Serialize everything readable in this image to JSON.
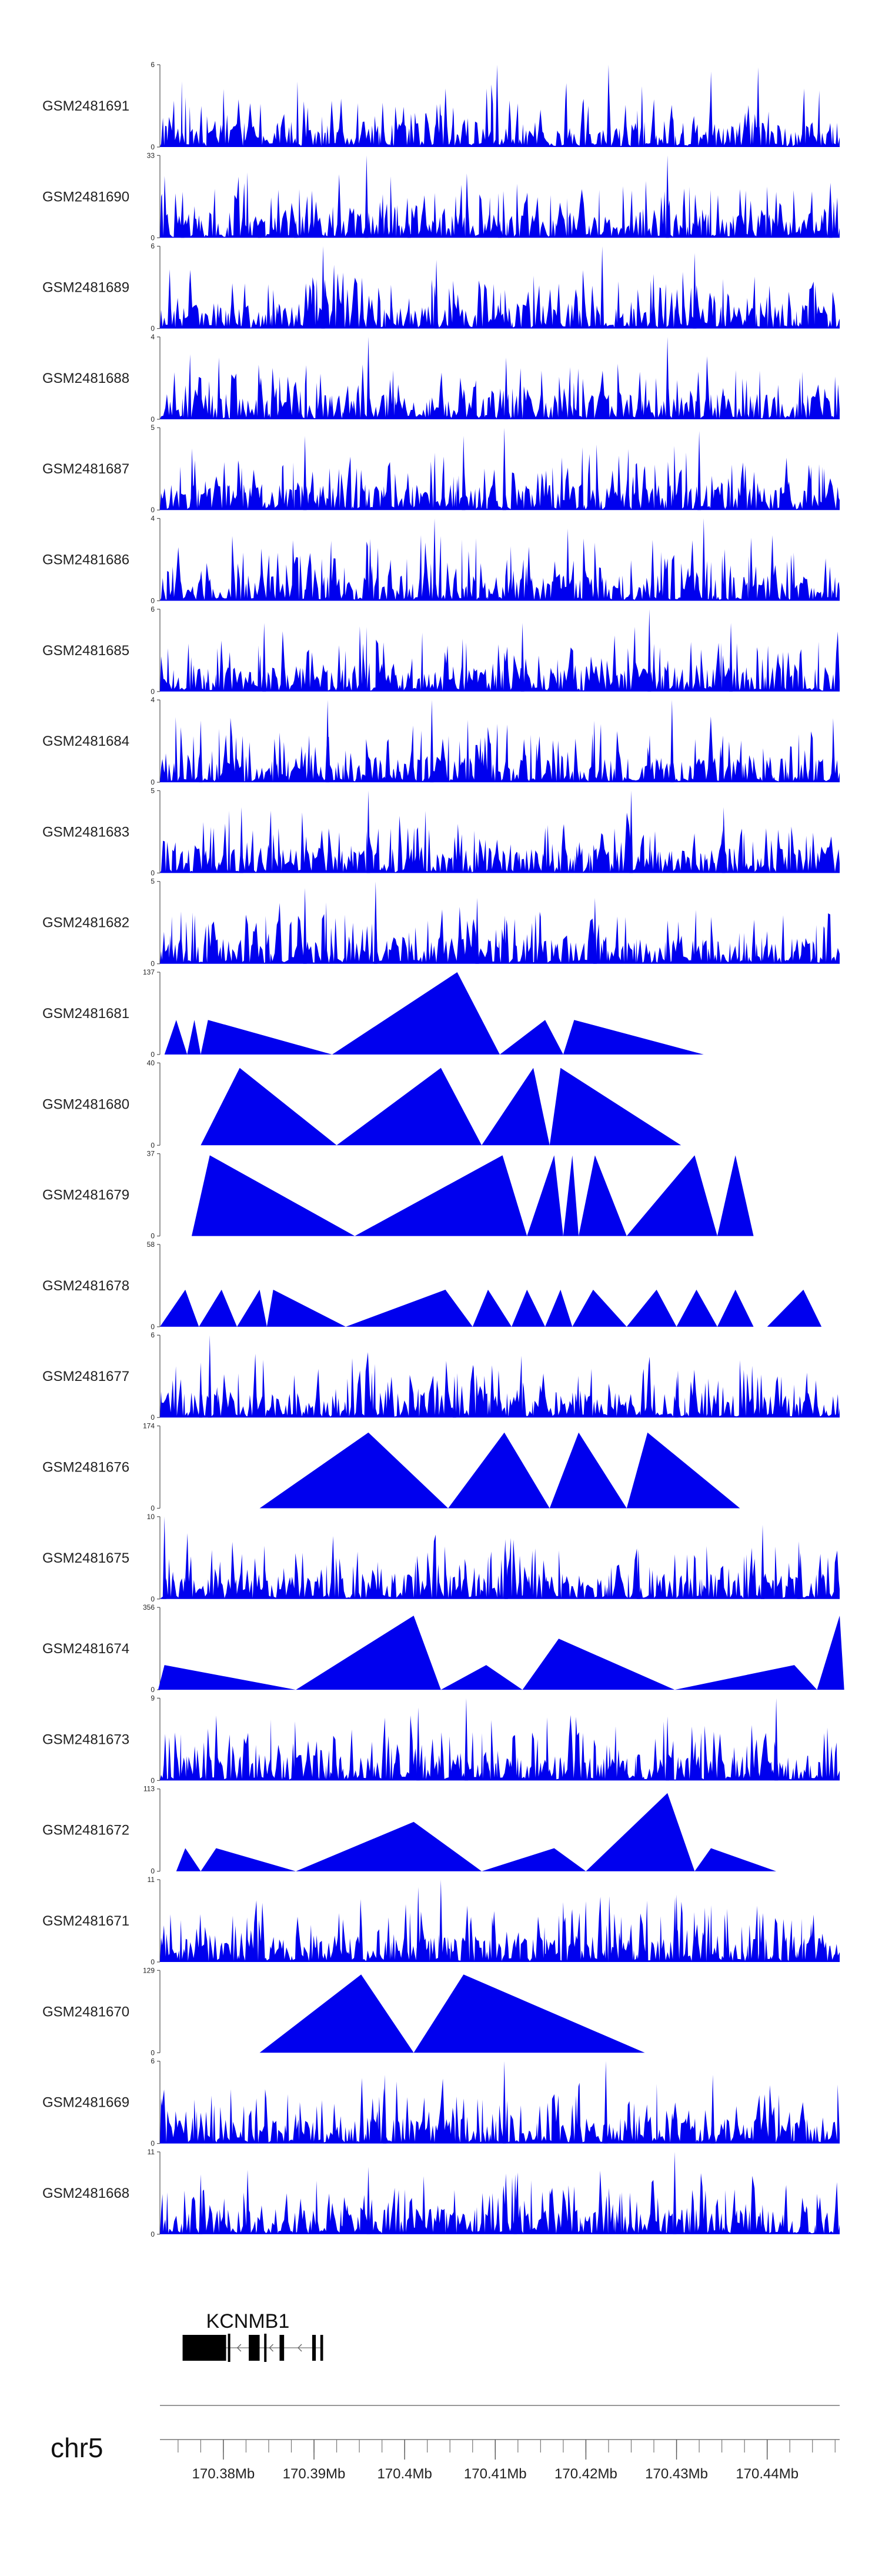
{
  "chart_data": {
    "type": "area",
    "x_axis": {
      "chromosome": "chr5",
      "unit": "Mb",
      "range": [
        170.373,
        170.448
      ],
      "major_ticks": [
        170.38,
        170.39,
        170.4,
        170.41,
        170.42,
        170.43,
        170.44
      ],
      "tick_labels": [
        "170.38Mb",
        "170.39Mb",
        "170.4Mb",
        "170.41Mb",
        "170.42Mb",
        "170.43Mb",
        "170.44Mb"
      ],
      "minor_tick_step": 0.0025
    },
    "gene": {
      "name": "KCNMB1",
      "strand": "-",
      "start": 170.3755,
      "end": 170.391,
      "exons": [
        [
          170.3755,
          170.3803
        ],
        [
          170.3828,
          170.384
        ],
        [
          170.3862,
          170.3867
        ],
        [
          170.3898,
          170.3902
        ],
        [
          170.3907,
          170.391
        ]
      ]
    },
    "fill_color": "#0000ee",
    "tracks": [
      {
        "label": "GSM2481691",
        "ymax": "6",
        "style": "dense",
        "peaks": [
          {
            "x": 170.4102,
            "y": 6
          },
          {
            "x": 170.4225,
            "y": 6
          },
          {
            "x": 170.4338,
            "y": 5.5
          },
          {
            "x": 170.439,
            "y": 5.8
          }
        ]
      },
      {
        "label": "GSM2481690",
        "ymax": "33",
        "style": "sparse",
        "peaks": [
          {
            "x": 170.3755,
            "y": 6
          },
          {
            "x": 170.384,
            "y": 7
          },
          {
            "x": 170.388,
            "y": 7
          },
          {
            "x": 170.3958,
            "y": 33
          },
          {
            "x": 170.4005,
            "y": 6
          },
          {
            "x": 170.4105,
            "y": 7
          },
          {
            "x": 170.429,
            "y": 33
          },
          {
            "x": 170.447,
            "y": 6
          }
        ]
      },
      {
        "label": "GSM2481689",
        "ymax": "6",
        "style": "dense",
        "peaks": [
          {
            "x": 170.391,
            "y": 6
          },
          {
            "x": 170.4035,
            "y": 5
          },
          {
            "x": 170.4218,
            "y": 6
          },
          {
            "x": 170.432,
            "y": 5.5
          }
        ]
      },
      {
        "label": "GSM2481688",
        "ymax": "4",
        "style": "dense",
        "peaks": [
          {
            "x": 170.3795,
            "y": 3
          },
          {
            "x": 170.396,
            "y": 4
          },
          {
            "x": 170.4112,
            "y": 3
          },
          {
            "x": 170.429,
            "y": 4
          }
        ]
      },
      {
        "label": "GSM2481687",
        "ymax": "5",
        "style": "dense",
        "peaks": [
          {
            "x": 170.389,
            "y": 4.5
          },
          {
            "x": 170.4065,
            "y": 4.5
          },
          {
            "x": 170.411,
            "y": 5
          },
          {
            "x": 170.4325,
            "y": 4.8
          }
        ]
      },
      {
        "label": "GSM2481686",
        "ymax": "4",
        "style": "dense",
        "peaks": [
          {
            "x": 170.3962,
            "y": 3
          },
          {
            "x": 170.4033,
            "y": 4
          },
          {
            "x": 170.418,
            "y": 3.5
          },
          {
            "x": 170.433,
            "y": 4
          }
        ]
      },
      {
        "label": "GSM2481685",
        "ymax": "6",
        "style": "dense",
        "peaks": [
          {
            "x": 170.3845,
            "y": 5
          },
          {
            "x": 170.413,
            "y": 5
          },
          {
            "x": 170.427,
            "y": 6
          },
          {
            "x": 170.436,
            "y": 5
          }
        ]
      },
      {
        "label": "GSM2481684",
        "ymax": "4",
        "style": "dense",
        "peaks": [
          {
            "x": 170.3775,
            "y": 3
          },
          {
            "x": 170.3915,
            "y": 4
          },
          {
            "x": 170.403,
            "y": 4
          },
          {
            "x": 170.4295,
            "y": 4
          }
        ]
      },
      {
        "label": "GSM2481683",
        "ymax": "5",
        "style": "dense",
        "peaks": [
          {
            "x": 170.382,
            "y": 4
          },
          {
            "x": 170.396,
            "y": 5
          },
          {
            "x": 170.425,
            "y": 5
          },
          {
            "x": 170.4352,
            "y": 4
          }
        ]
      },
      {
        "label": "GSM2481682",
        "ymax": "5",
        "style": "dense",
        "peaks": [
          {
            "x": 170.389,
            "y": 4.6
          },
          {
            "x": 170.3968,
            "y": 5
          },
          {
            "x": 170.408,
            "y": 4
          },
          {
            "x": 170.421,
            "y": 4
          }
        ]
      },
      {
        "label": "GSM2481681",
        "ymax": "137",
        "style": "triangles",
        "shapes": [
          [
            170.3735,
            170.3748,
            170.376,
            0.42
          ],
          [
            170.376,
            170.3768,
            170.3775,
            0.42
          ],
          [
            170.3775,
            170.3783,
            170.392,
            0.42
          ],
          [
            170.392,
            170.4058,
            170.4105,
            1.0
          ],
          [
            170.4105,
            170.4155,
            170.4175,
            0.42
          ],
          [
            170.4175,
            170.4187,
            170.433,
            0.42
          ]
        ]
      },
      {
        "label": "GSM2481680",
        "ymax": "40",
        "style": "triangles",
        "shapes": [
          [
            170.3775,
            170.3818,
            170.3925,
            0.94
          ],
          [
            170.3925,
            170.404,
            170.4085,
            0.94
          ],
          [
            170.4085,
            170.4142,
            170.416,
            0.94
          ],
          [
            170.416,
            170.4172,
            170.4305,
            0.94
          ]
        ]
      },
      {
        "label": "GSM2481679",
        "ymax": "37",
        "style": "triangles",
        "shapes": [
          [
            170.3765,
            170.3785,
            170.3945,
            0.98
          ],
          [
            170.3945,
            170.4108,
            170.4135,
            0.98
          ],
          [
            170.4135,
            170.4165,
            170.4175,
            0.98
          ],
          [
            170.4175,
            170.4185,
            170.4192,
            0.98
          ],
          [
            170.4192,
            170.421,
            170.4245,
            0.98
          ],
          [
            170.4245,
            170.432,
            170.4345,
            0.98
          ],
          [
            170.4345,
            170.4365,
            170.4385,
            0.98
          ]
        ]
      },
      {
        "label": "GSM2481678",
        "ymax": "58",
        "style": "triangles",
        "shapes": [
          [
            170.373,
            170.3758,
            170.3773,
            0.45
          ],
          [
            170.3773,
            170.3798,
            170.3815,
            0.45
          ],
          [
            170.3815,
            170.384,
            170.3848,
            0.45
          ],
          [
            170.3848,
            170.3855,
            170.3935,
            0.45
          ],
          [
            170.3935,
            170.4045,
            170.4075,
            0.45
          ],
          [
            170.4075,
            170.4092,
            170.4118,
            0.45
          ],
          [
            170.4118,
            170.4135,
            170.4155,
            0.45
          ],
          [
            170.4155,
            170.4172,
            170.4185,
            0.45
          ],
          [
            170.4185,
            170.4208,
            170.4245,
            0.45
          ],
          [
            170.4245,
            170.4278,
            170.43,
            0.45
          ],
          [
            170.43,
            170.4322,
            170.4345,
            0.45
          ],
          [
            170.4345,
            170.4365,
            170.4385,
            0.45
          ],
          [
            170.44,
            170.444,
            170.446,
            0.45
          ]
        ]
      },
      {
        "label": "GSM2481677",
        "ymax": "6",
        "style": "dense",
        "peaks": [
          {
            "x": 170.3775,
            "y": 4
          },
          {
            "x": 170.3785,
            "y": 6
          },
          {
            "x": 170.4055,
            "y": 3
          },
          {
            "x": 170.43,
            "y": 3
          }
        ]
      },
      {
        "label": "GSM2481676",
        "ymax": "174",
        "style": "triangles",
        "shapes": [
          [
            170.384,
            170.396,
            170.4048,
            0.92
          ],
          [
            170.4048,
            170.411,
            170.416,
            0.92
          ],
          [
            170.416,
            170.4192,
            170.4245,
            0.92
          ],
          [
            170.4245,
            170.4268,
            170.437,
            0.92
          ]
        ]
      },
      {
        "label": "GSM2481675",
        "ymax": "10",
        "style": "dense",
        "peaks": [
          {
            "x": 170.3735,
            "y": 10
          },
          {
            "x": 170.4112,
            "y": 6
          },
          {
            "x": 170.4258,
            "y": 6
          },
          {
            "x": 170.4395,
            "y": 9
          },
          {
            "x": 170.4435,
            "y": 7
          }
        ]
      },
      {
        "label": "GSM2481674",
        "ymax": "356",
        "style": "triangles",
        "shapes": [
          [
            170.3728,
            170.3735,
            170.388,
            0.3
          ],
          [
            170.388,
            170.401,
            170.404,
            0.9
          ],
          [
            170.404,
            170.409,
            170.413,
            0.3
          ],
          [
            170.413,
            170.417,
            170.4298,
            0.62
          ],
          [
            170.4298,
            170.443,
            170.4455,
            0.3
          ],
          [
            170.4455,
            170.448,
            170.4485,
            0.9
          ]
        ]
      },
      {
        "label": "GSM2481673",
        "ymax": "9",
        "style": "dense",
        "peaks": [
          {
            "x": 170.4015,
            "y": 8
          },
          {
            "x": 170.4068,
            "y": 9
          },
          {
            "x": 170.429,
            "y": 7
          },
          {
            "x": 170.441,
            "y": 9
          }
        ]
      },
      {
        "label": "GSM2481672",
        "ymax": "113",
        "style": "triangles",
        "shapes": [
          [
            170.3748,
            170.3758,
            170.3775,
            0.28
          ],
          [
            170.3775,
            170.3792,
            170.388,
            0.28
          ],
          [
            170.388,
            170.401,
            170.4085,
            0.6
          ],
          [
            170.4085,
            170.4165,
            170.42,
            0.28
          ],
          [
            170.42,
            170.429,
            170.432,
            0.95
          ],
          [
            170.432,
            170.4338,
            170.441,
            0.28
          ]
        ]
      },
      {
        "label": "GSM2481671",
        "ymax": "11",
        "style": "dense",
        "peaks": [
          {
            "x": 170.4015,
            "y": 10
          },
          {
            "x": 170.404,
            "y": 11
          },
          {
            "x": 170.4175,
            "y": 8
          },
          {
            "x": 170.43,
            "y": 9
          }
        ]
      },
      {
        "label": "GSM2481670",
        "ymax": "129",
        "style": "triangles",
        "shapes": [
          [
            170.384,
            170.3952,
            170.401,
            0.95
          ],
          [
            170.401,
            170.4065,
            170.4265,
            0.95
          ]
        ]
      },
      {
        "label": "GSM2481669",
        "ymax": "6",
        "style": "dense",
        "peaks": [
          {
            "x": 170.3978,
            "y": 5
          },
          {
            "x": 170.411,
            "y": 6
          },
          {
            "x": 170.4222,
            "y": 6
          },
          {
            "x": 170.434,
            "y": 5
          }
        ]
      },
      {
        "label": "GSM2481668",
        "ymax": "11",
        "style": "dense",
        "peaks": [
          {
            "x": 170.3775,
            "y": 8
          },
          {
            "x": 170.396,
            "y": 9
          },
          {
            "x": 170.4122,
            "y": 8
          },
          {
            "x": 170.4298,
            "y": 11
          }
        ]
      }
    ]
  }
}
